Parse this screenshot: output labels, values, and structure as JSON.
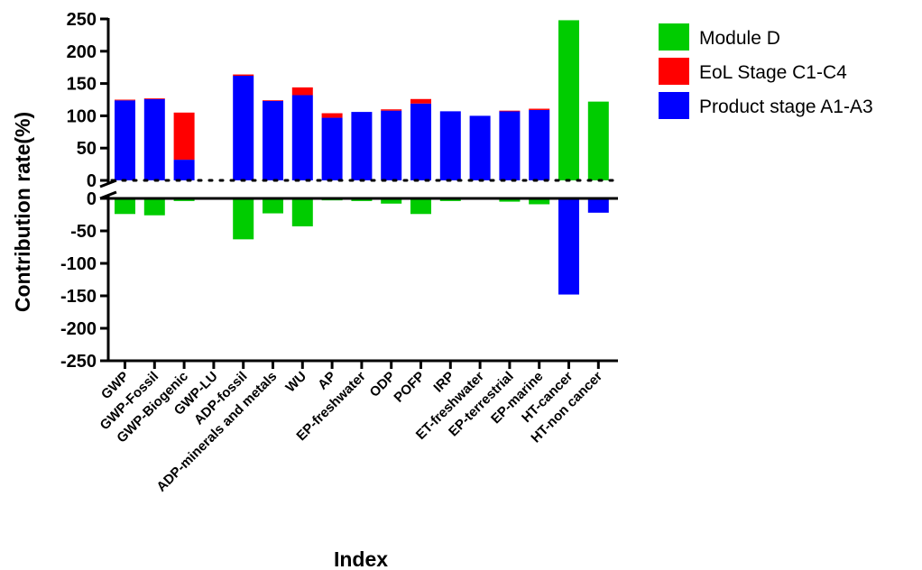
{
  "chart_data": {
    "type": "bar",
    "stacked": true,
    "title": "",
    "xlabel": "Index",
    "ylabel": "Contribution rate(%)",
    "ylim": [
      -250,
      250
    ],
    "y_axis_break": "between 0 (upper panel) and 0 (lower panel)",
    "grid": false,
    "legend_position": "right",
    "categories": [
      "GWP",
      "GWP-Fossil",
      "GWP-Biogenic",
      "GWP-LU",
      "ADP-fossil",
      "ADP-minerals and metals",
      "WU",
      "AP",
      "EP-freshwater",
      "ODP",
      "POFP",
      "IRP",
      "ET-freshwater",
      "EP-terrestrial",
      "EP-marine",
      "HT-cancer",
      "HT-non cancer"
    ],
    "upper_ticks": [
      "250",
      "200",
      "150",
      "100",
      "50",
      "0"
    ],
    "lower_ticks": [
      "0",
      "-50",
      "-100",
      "-150",
      "-200",
      "-250"
    ],
    "series": [
      {
        "name": "Module D",
        "color": "#00cc00",
        "values": [
          -24,
          -26,
          -4,
          0,
          -63,
          -23,
          -43,
          -3,
          -4,
          -8,
          -24,
          -4,
          -1,
          -5,
          -9,
          248,
          122
        ]
      },
      {
        "name": "EoL Stage C1-C4",
        "color": "#ff0000",
        "values": [
          1,
          1,
          73,
          0,
          2,
          1,
          12,
          7,
          0,
          2,
          7,
          0,
          0,
          1,
          2,
          0,
          0
        ]
      },
      {
        "name": "Product stage A1-A3",
        "color": "#0000ff",
        "values": [
          124,
          126,
          32,
          0,
          162,
          123,
          132,
          97,
          106,
          108,
          119,
          107,
          100,
          107,
          109,
          -148,
          -22
        ]
      }
    ]
  }
}
